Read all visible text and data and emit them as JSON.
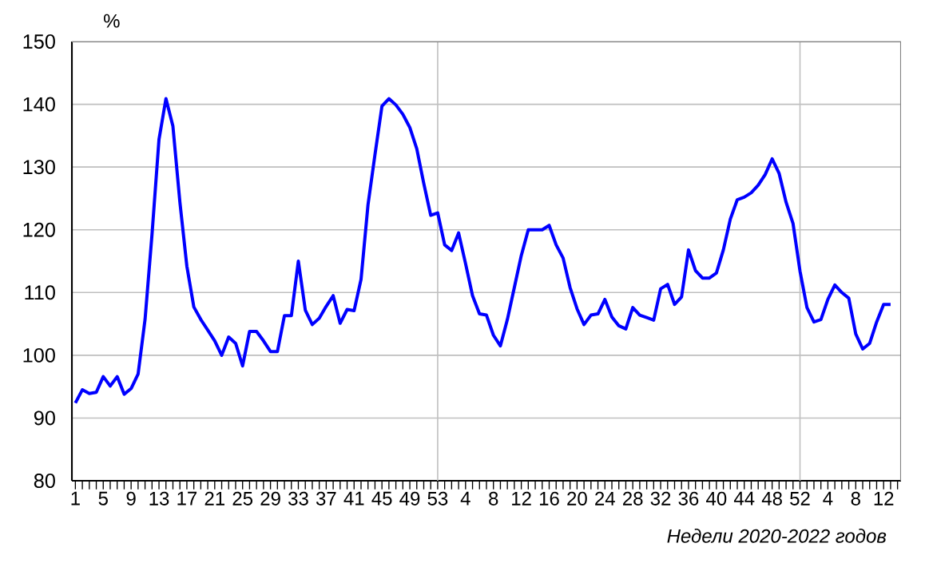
{
  "chart_data": {
    "type": "line",
    "ylabel": "%",
    "xlabel": "Недели 2020-2022 годов",
    "categories": [
      "1",
      null,
      null,
      null,
      "5",
      null,
      null,
      null,
      "9",
      null,
      null,
      null,
      "13",
      null,
      null,
      null,
      "17",
      null,
      null,
      null,
      "21",
      null,
      null,
      null,
      "25",
      null,
      null,
      null,
      "29",
      null,
      null,
      null,
      "33",
      null,
      null,
      null,
      "37",
      null,
      null,
      null,
      "41",
      null,
      null,
      null,
      "45",
      null,
      null,
      null,
      "49",
      null,
      null,
      null,
      "53",
      null,
      null,
      null,
      "4",
      null,
      null,
      null,
      "8",
      null,
      null,
      null,
      "12",
      null,
      null,
      null,
      "16",
      null,
      null,
      null,
      "20",
      null,
      null,
      null,
      "24",
      null,
      null,
      null,
      "28",
      null,
      null,
      null,
      "32",
      null,
      null,
      null,
      "36",
      null,
      null,
      null,
      "40",
      null,
      null,
      null,
      "44",
      null,
      null,
      null,
      "48",
      null,
      null,
      null,
      "52",
      null,
      null,
      null,
      "4",
      null,
      null,
      null,
      "8",
      null,
      null,
      null,
      "12",
      null,
      null
    ],
    "series": [
      {
        "color": "#0000ff",
        "values": [
          92.4,
          94.5,
          93.9,
          94.1,
          96.6,
          95.1,
          96.6,
          93.8,
          94.7,
          97,
          105.7,
          119.3,
          134.4,
          140.9,
          136.5,
          124.4,
          114.2,
          107.7,
          105.7,
          104,
          102.3,
          100,
          102.9,
          101.9,
          98.3,
          103.8,
          103.8,
          102.3,
          100.6,
          100.6,
          106.3,
          106.3,
          115,
          107.2,
          104.9,
          105.9,
          107.8,
          109.5,
          105.1,
          107.3,
          107.1,
          112.1,
          124,
          132,
          139.7,
          140.9,
          139.9,
          138.4,
          136.3,
          132.9,
          127.4,
          122.3,
          122.7,
          117.6,
          116.7,
          119.5,
          114.6,
          109.5,
          106.6,
          106.4,
          103.2,
          101.5,
          105.7,
          110.8,
          115.9,
          120,
          120,
          120,
          120.7,
          117.6,
          115.5,
          110.8,
          107.4,
          104.9,
          106.4,
          106.6,
          108.9,
          106.1,
          104.7,
          104.2,
          107.6,
          106.4,
          106,
          105.6,
          110.6,
          111.3,
          108.1,
          109.3,
          116.8,
          113.5,
          112.3,
          112.3,
          113.1,
          116.8,
          121.7,
          124.8,
          125.2,
          125.9,
          127.1,
          128.8,
          131.3,
          129,
          124.4,
          121,
          113.4,
          107.6,
          105.3,
          105.7,
          108.9,
          111.2,
          110,
          109.1,
          103.4,
          101,
          101.9,
          105.3,
          108.1,
          108.1,
          null
        ]
      }
    ],
    "ylim": [
      80,
      150
    ],
    "yticks": [
      80,
      90,
      100,
      110,
      120,
      130,
      140,
      150
    ],
    "grid": "y",
    "ref_lines": [
      {
        "axis": "x",
        "value": "53",
        "color": "#c0c0c0"
      },
      {
        "axis": "x",
        "value": "52",
        "color": "#c0c0c0"
      }
    ]
  }
}
